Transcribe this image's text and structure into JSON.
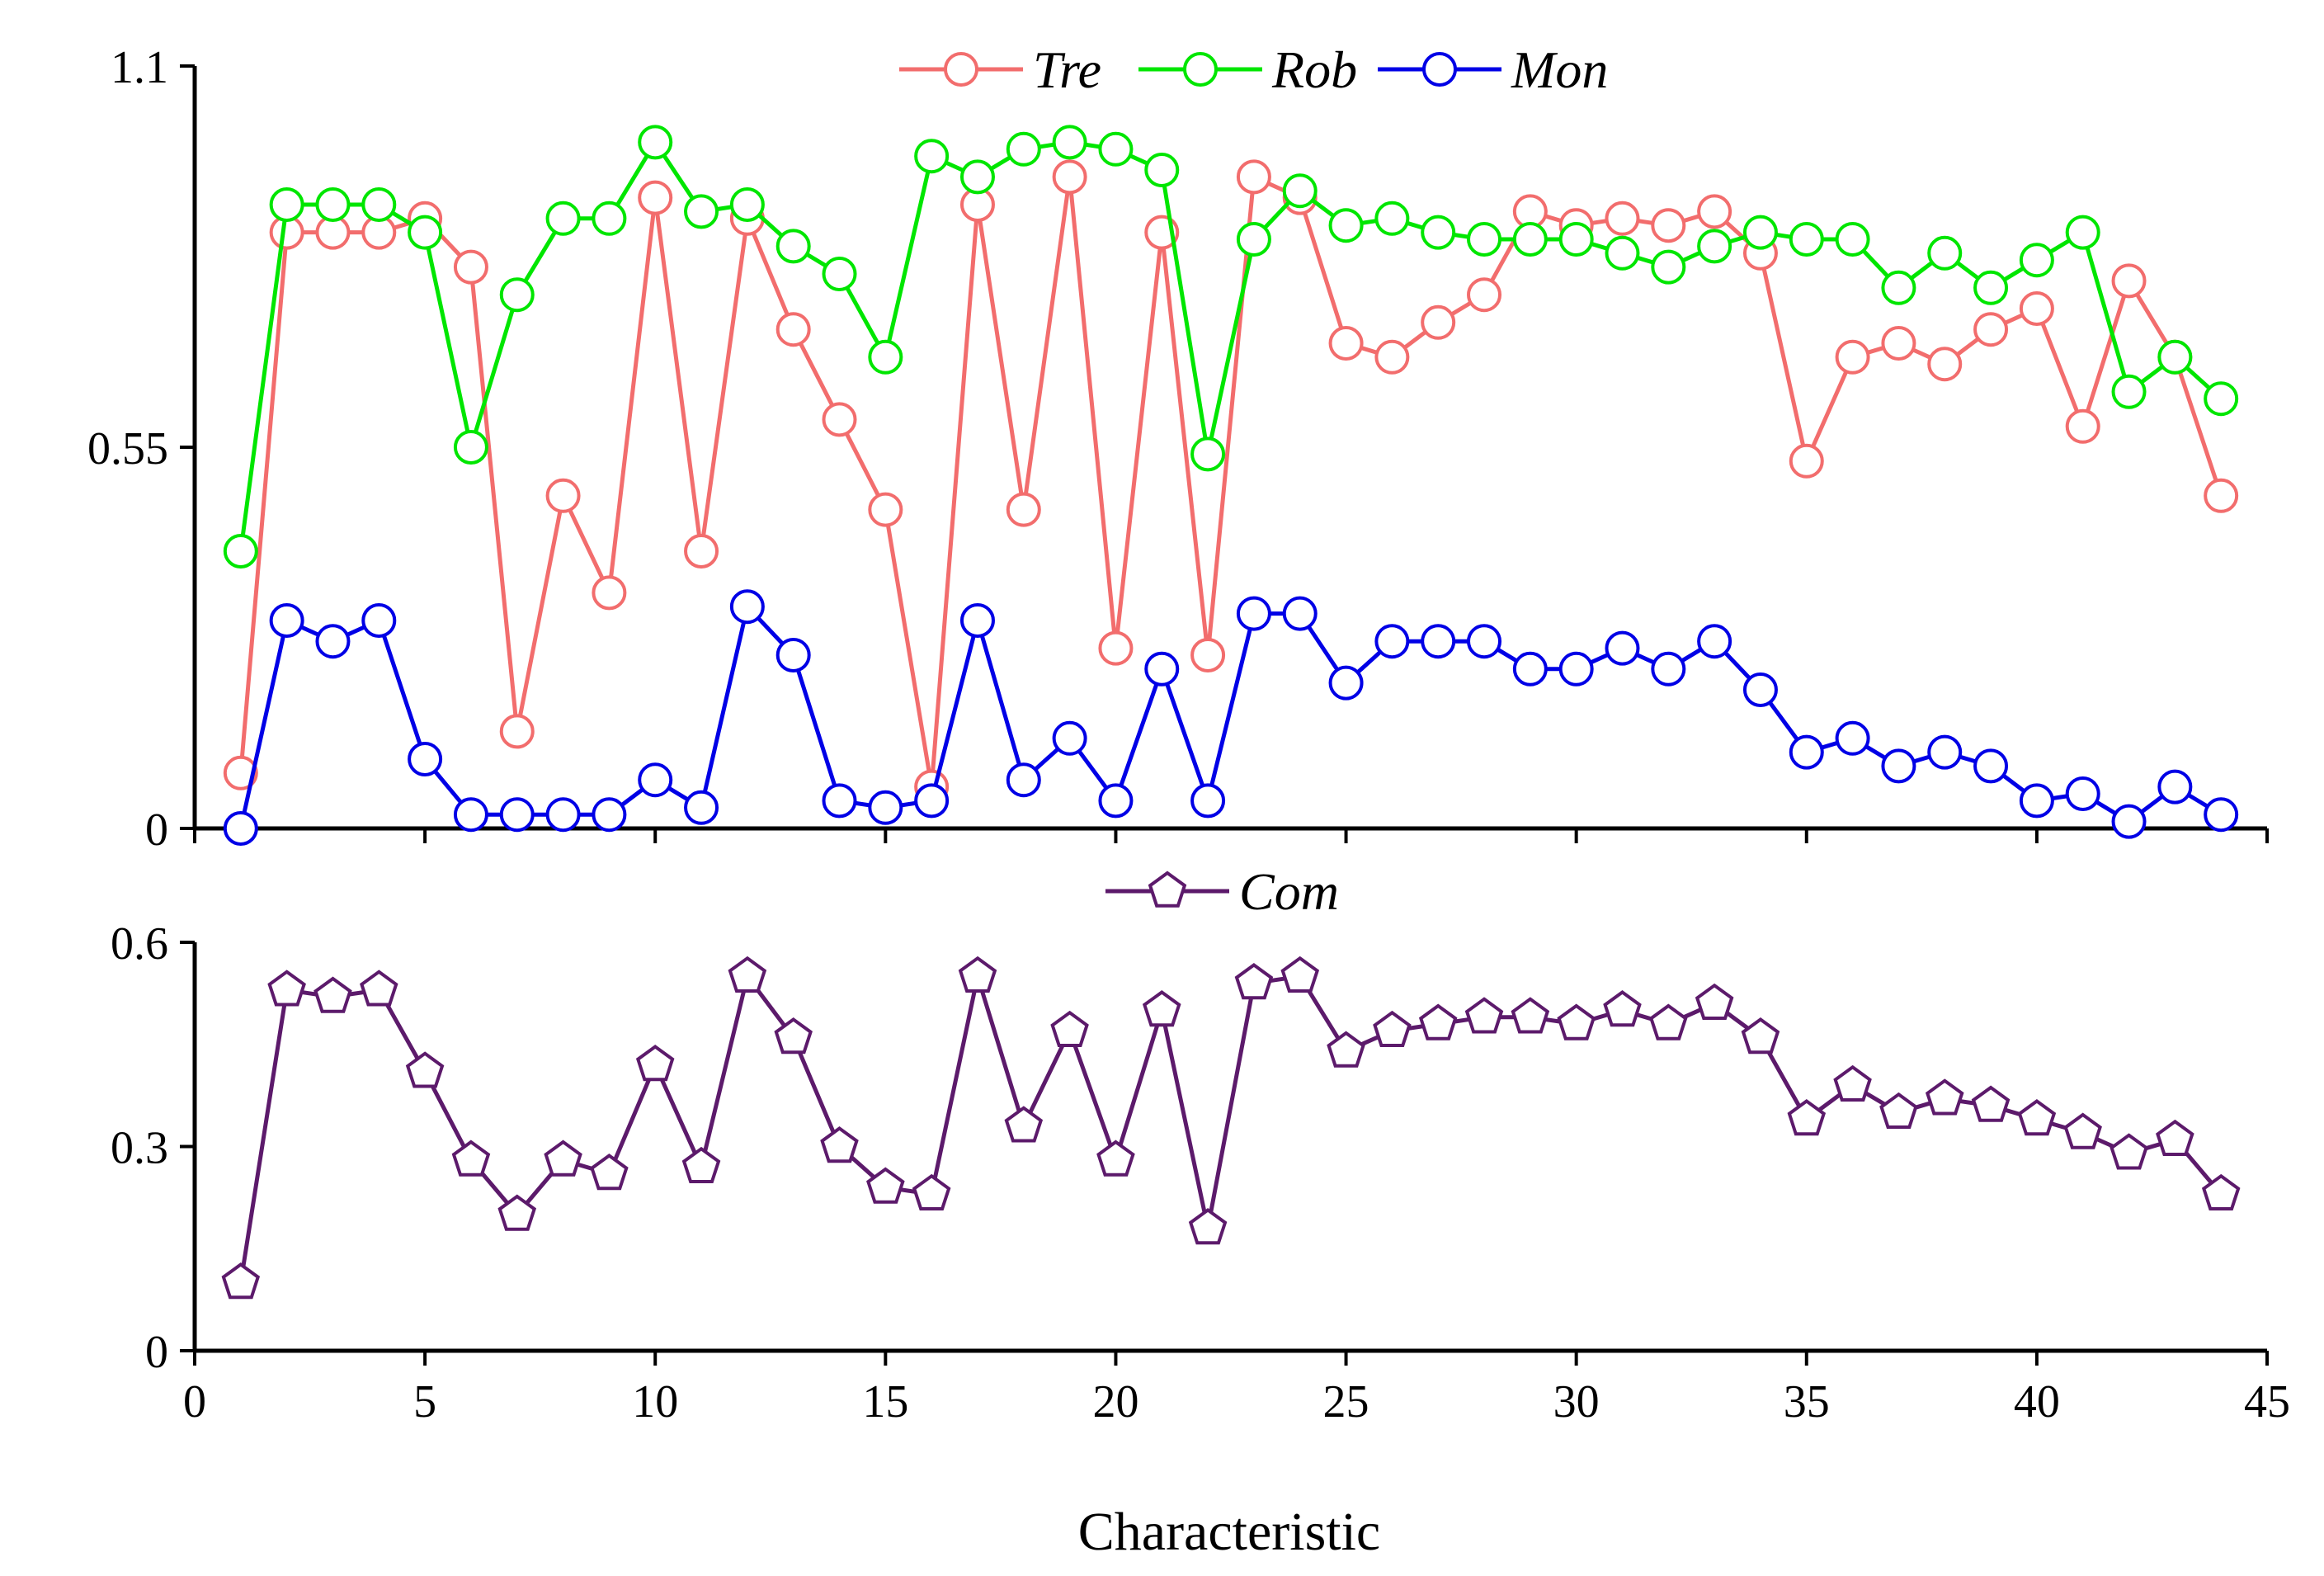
{
  "chart_data": {
    "type": "line",
    "xlabel": "Characteristic",
    "x": [
      1,
      2,
      3,
      4,
      5,
      6,
      7,
      8,
      9,
      10,
      11,
      12,
      13,
      14,
      15,
      16,
      17,
      18,
      19,
      20,
      21,
      22,
      23,
      24,
      25,
      26,
      27,
      28,
      29,
      30,
      31,
      32,
      33,
      34,
      35,
      36,
      37,
      38,
      39,
      40,
      41,
      42,
      43,
      44
    ],
    "xlim": [
      0,
      45
    ],
    "xticks": [
      "0",
      "5",
      "10",
      "15",
      "20",
      "25",
      "30",
      "35",
      "40",
      "45"
    ],
    "xtick_values": [
      0,
      5,
      10,
      15,
      20,
      25,
      30,
      35,
      40,
      45
    ],
    "panels": [
      {
        "name": "top",
        "ylim": [
          0,
          1.1
        ],
        "yticks": [
          "0",
          "0.55",
          "1.1"
        ],
        "ytick_values": [
          0,
          0.55,
          1.1
        ],
        "legend_position": "top-center",
        "series": [
          {
            "name": "Tre",
            "color": "#f26d6d",
            "marker": "circle",
            "values": [
              0.08,
              0.86,
              0.86,
              0.86,
              0.88,
              0.81,
              0.14,
              0.48,
              0.34,
              0.91,
              0.4,
              0.88,
              0.72,
              0.59,
              0.46,
              0.06,
              0.9,
              0.46,
              0.94,
              0.26,
              0.86,
              0.25,
              0.94,
              0.91,
              0.7,
              0.68,
              0.73,
              0.77,
              0.89,
              0.87,
              0.88,
              0.87,
              0.89,
              0.83,
              0.53,
              0.68,
              0.7,
              0.67,
              0.72,
              0.75,
              0.58,
              0.79,
              0.68,
              0.48
            ]
          },
          {
            "name": "Rob",
            "color": "#00e600",
            "marker": "circle",
            "values": [
              0.4,
              0.9,
              0.9,
              0.9,
              0.86,
              0.55,
              0.77,
              0.88,
              0.88,
              0.99,
              0.89,
              0.9,
              0.84,
              0.8,
              0.68,
              0.97,
              0.94,
              0.98,
              0.99,
              0.98,
              0.95,
              0.54,
              0.85,
              0.92,
              0.87,
              0.88,
              0.86,
              0.85,
              0.85,
              0.85,
              0.83,
              0.81,
              0.84,
              0.86,
              0.85,
              0.85,
              0.78,
              0.83,
              0.78,
              0.82,
              0.86,
              0.63,
              0.68,
              0.62
            ]
          },
          {
            "name": "Mon",
            "color": "#0000e6",
            "marker": "circle",
            "values": [
              0.0,
              0.3,
              0.27,
              0.3,
              0.1,
              0.02,
              0.02,
              0.02,
              0.02,
              0.07,
              0.03,
              0.32,
              0.25,
              0.04,
              0.03,
              0.04,
              0.3,
              0.07,
              0.13,
              0.04,
              0.23,
              0.04,
              0.31,
              0.31,
              0.21,
              0.27,
              0.27,
              0.27,
              0.23,
              0.23,
              0.26,
              0.23,
              0.27,
              0.2,
              0.11,
              0.13,
              0.09,
              0.11,
              0.09,
              0.04,
              0.05,
              0.01,
              0.06,
              0.02
            ]
          }
        ]
      },
      {
        "name": "bottom",
        "ylim": [
          0,
          0.6
        ],
        "yticks": [
          "0",
          "0.3",
          "0.6"
        ],
        "ytick_values": [
          0,
          0.3,
          0.6
        ],
        "legend_position": "top-center",
        "series": [
          {
            "name": "Com",
            "color": "#5c1a6b",
            "marker": "pentagon",
            "values": [
              0.1,
              0.53,
              0.52,
              0.53,
              0.41,
              0.28,
              0.2,
              0.28,
              0.26,
              0.42,
              0.27,
              0.55,
              0.46,
              0.3,
              0.24,
              0.23,
              0.55,
              0.33,
              0.47,
              0.28,
              0.5,
              0.18,
              0.54,
              0.55,
              0.44,
              0.47,
              0.48,
              0.49,
              0.49,
              0.48,
              0.5,
              0.48,
              0.51,
              0.46,
              0.34,
              0.39,
              0.35,
              0.37,
              0.36,
              0.34,
              0.32,
              0.29,
              0.31,
              0.23
            ]
          }
        ]
      }
    ]
  }
}
